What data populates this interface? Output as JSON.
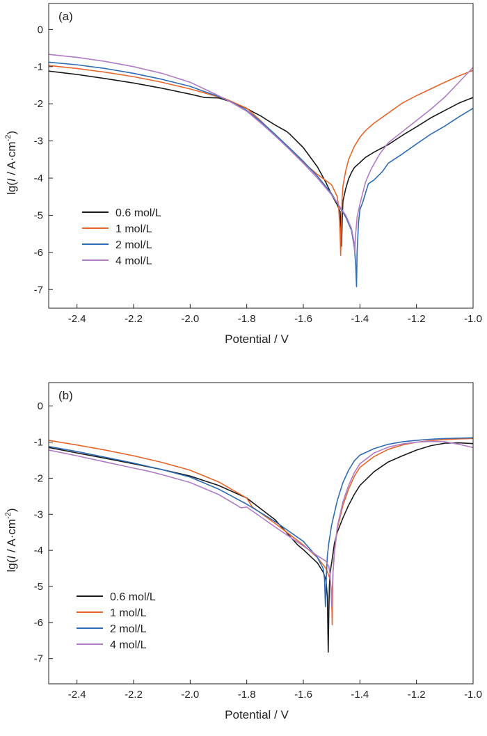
{
  "chart_data": [
    {
      "type": "line",
      "panel": "(a)",
      "title": "",
      "xlabel": "Potential / V",
      "ylabel_prefix": "lg(",
      "ylabel_italic": "I",
      "ylabel_main": " / A·cm",
      "ylabel_sup": "-2",
      "ylabel_suffix": ")",
      "xlim": [
        -2.5,
        -1.0
      ],
      "ylim": [
        -7.5,
        0.7
      ],
      "xticks": [
        -2.4,
        -2.2,
        -2.0,
        -1.8,
        -1.6,
        -1.4,
        -1.2,
        -1.0
      ],
      "xtick_labels": [
        "-2.4",
        "-2.2",
        "-2.0",
        "-1.8",
        "-1.6",
        "-1.4",
        "-1.2",
        "-1.0"
      ],
      "yticks": [
        0,
        -1,
        -2,
        -3,
        -4,
        -5,
        -6,
        -7
      ],
      "ytick_labels": [
        "0",
        "-1",
        "-2",
        "-3",
        "-4",
        "-5",
        "-6",
        "-7"
      ],
      "legend_position": "bottom-left",
      "grid": false,
      "series": [
        {
          "name": "0.6 mol/L",
          "color": "#1a1a1a",
          "x": [
            -2.5,
            -2.4,
            -2.3,
            -2.2,
            -2.1,
            -2.0,
            -1.95,
            -1.9,
            -1.85,
            -1.8,
            -1.75,
            -1.7,
            -1.66,
            -1.65,
            -1.6,
            -1.55,
            -1.52,
            -1.5,
            -1.48,
            -1.47,
            -1.466,
            -1.465,
            -1.462,
            -1.46,
            -1.45,
            -1.44,
            -1.43,
            -1.42,
            -1.4,
            -1.38,
            -1.35,
            -1.3,
            -1.25,
            -1.2,
            -1.15,
            -1.1,
            -1.05,
            -1.0
          ],
          "y": [
            -1.12,
            -1.21,
            -1.32,
            -1.44,
            -1.58,
            -1.74,
            -1.83,
            -1.84,
            -1.96,
            -2.13,
            -2.33,
            -2.57,
            -2.74,
            -2.8,
            -3.18,
            -3.7,
            -4.12,
            -4.45,
            -4.72,
            -4.9,
            -5.5,
            -5.83,
            -5.0,
            -4.62,
            -4.28,
            -4.02,
            -3.85,
            -3.72,
            -3.58,
            -3.44,
            -3.3,
            -3.1,
            -2.85,
            -2.62,
            -2.38,
            -2.18,
            -1.98,
            -1.83
          ]
        },
        {
          "name": "1 mol/L",
          "color": "#e8652a",
          "x": [
            -2.5,
            -2.4,
            -2.3,
            -2.2,
            -2.1,
            -2.0,
            -1.92,
            -1.88,
            -1.85,
            -1.8,
            -1.75,
            -1.7,
            -1.65,
            -1.6,
            -1.55,
            -1.5,
            -1.48,
            -1.475,
            -1.47,
            -1.468,
            -1.466,
            -1.463,
            -1.46,
            -1.455,
            -1.45,
            -1.44,
            -1.42,
            -1.4,
            -1.38,
            -1.35,
            -1.3,
            -1.25,
            -1.2,
            -1.15,
            -1.1,
            -1.05,
            -1.0
          ],
          "y": [
            -0.97,
            -1.05,
            -1.15,
            -1.27,
            -1.42,
            -1.6,
            -1.77,
            -1.85,
            -1.95,
            -2.12,
            -2.46,
            -2.84,
            -3.2,
            -3.58,
            -3.9,
            -4.18,
            -4.5,
            -4.8,
            -5.5,
            -6.08,
            -5.4,
            -4.55,
            -4.22,
            -4.0,
            -3.8,
            -3.5,
            -3.15,
            -2.9,
            -2.72,
            -2.52,
            -2.25,
            -1.98,
            -1.78,
            -1.6,
            -1.42,
            -1.25,
            -1.1
          ]
        },
        {
          "name": "2 mol/L",
          "color": "#2f6cb3",
          "x": [
            -2.5,
            -2.4,
            -2.3,
            -2.2,
            -2.1,
            -2.0,
            -1.95,
            -1.9,
            -1.85,
            -1.8,
            -1.75,
            -1.7,
            -1.65,
            -1.6,
            -1.55,
            -1.5,
            -1.45,
            -1.43,
            -1.42,
            -1.415,
            -1.412,
            -1.41,
            -1.405,
            -1.4,
            -1.39,
            -1.38,
            -1.37,
            -1.35,
            -1.32,
            -1.3,
            -1.25,
            -1.2,
            -1.15,
            -1.1,
            -1.05,
            -1.0
          ],
          "y": [
            -0.88,
            -0.95,
            -1.05,
            -1.18,
            -1.34,
            -1.53,
            -1.67,
            -1.8,
            -1.97,
            -2.18,
            -2.48,
            -2.82,
            -3.18,
            -3.55,
            -3.95,
            -4.42,
            -5.05,
            -5.4,
            -5.85,
            -6.3,
            -6.92,
            -6.0,
            -5.2,
            -4.85,
            -4.65,
            -4.4,
            -4.15,
            -4.05,
            -3.82,
            -3.6,
            -3.35,
            -3.08,
            -2.82,
            -2.6,
            -2.35,
            -2.12
          ]
        },
        {
          "name": "4 mol/L",
          "color": "#b07cc6",
          "x": [
            -2.5,
            -2.4,
            -2.3,
            -2.2,
            -2.1,
            -2.0,
            -1.95,
            -1.9,
            -1.85,
            -1.8,
            -1.75,
            -1.7,
            -1.65,
            -1.6,
            -1.55,
            -1.5,
            -1.45,
            -1.43,
            -1.42,
            -1.418,
            -1.416,
            -1.41,
            -1.4,
            -1.39,
            -1.38,
            -1.36,
            -1.33,
            -1.3,
            -1.25,
            -1.2,
            -1.15,
            -1.1,
            -1.05,
            -1.0
          ],
          "y": [
            -0.67,
            -0.75,
            -0.86,
            -1.0,
            -1.18,
            -1.42,
            -1.6,
            -1.78,
            -1.98,
            -2.2,
            -2.52,
            -2.86,
            -3.22,
            -3.6,
            -4.0,
            -4.45,
            -5.0,
            -5.35,
            -5.75,
            -6.02,
            -5.6,
            -5.05,
            -4.7,
            -4.4,
            -4.1,
            -3.75,
            -3.35,
            -3.05,
            -2.75,
            -2.45,
            -2.15,
            -1.82,
            -1.42,
            -1.02
          ]
        }
      ]
    },
    {
      "type": "line",
      "panel": "(b)",
      "title": "",
      "xlabel": "Potential / V",
      "ylabel_prefix": "lg(",
      "ylabel_italic": "I",
      "ylabel_main": " / A·cm",
      "ylabel_sup": "-2",
      "ylabel_suffix": ")",
      "xlim": [
        -2.5,
        -1.0
      ],
      "ylim": [
        -7.7,
        0.65
      ],
      "xticks": [
        -2.4,
        -2.2,
        -2.0,
        -1.8,
        -1.6,
        -1.4,
        -1.2,
        -1.0
      ],
      "xtick_labels": [
        "-2.4",
        "-2.2",
        "-2.0",
        "-1.8",
        "-1.6",
        "-1.4",
        "-1.2",
        "-1.0"
      ],
      "yticks": [
        0,
        -1,
        -2,
        -3,
        -4,
        -5,
        -6,
        -7
      ],
      "ytick_labels": [
        "0",
        "-1",
        "-2",
        "-3",
        "-4",
        "-5",
        "-6",
        "-7"
      ],
      "legend_position": "bottom-left",
      "grid": false,
      "series": [
        {
          "name": "0.6 mol/L",
          "color": "#1a1a1a",
          "x": [
            -2.5,
            -2.4,
            -2.3,
            -2.2,
            -2.1,
            -2.0,
            -1.9,
            -1.8,
            -1.7,
            -1.62,
            -1.6,
            -1.55,
            -1.53,
            -1.52,
            -1.515,
            -1.512,
            -1.51,
            -1.508,
            -1.505,
            -1.5,
            -1.49,
            -1.48,
            -1.46,
            -1.44,
            -1.42,
            -1.4,
            -1.35,
            -1.3,
            -1.25,
            -1.2,
            -1.15,
            -1.1,
            -1.05,
            -1.0
          ],
          "y": [
            -1.15,
            -1.3,
            -1.45,
            -1.6,
            -1.76,
            -1.94,
            -2.2,
            -2.55,
            -3.15,
            -3.85,
            -3.98,
            -4.35,
            -4.6,
            -4.82,
            -5.3,
            -6.82,
            -5.8,
            -5.0,
            -4.6,
            -4.35,
            -3.8,
            -3.5,
            -3.1,
            -2.75,
            -2.45,
            -2.2,
            -1.82,
            -1.55,
            -1.38,
            -1.22,
            -1.1,
            -1.03,
            -1.02,
            -1.04
          ]
        },
        {
          "name": "1 mol/L",
          "color": "#e8652a",
          "x": [
            -2.5,
            -2.4,
            -2.3,
            -2.2,
            -2.1,
            -2.0,
            -1.9,
            -1.8,
            -1.78,
            -1.7,
            -1.6,
            -1.55,
            -1.52,
            -1.505,
            -1.5,
            -1.498,
            -1.497,
            -1.495,
            -1.49,
            -1.48,
            -1.46,
            -1.44,
            -1.42,
            -1.4,
            -1.35,
            -1.3,
            -1.25,
            -1.2,
            -1.15,
            -1.1,
            -1.05,
            -1.0
          ],
          "y": [
            -0.95,
            -1.08,
            -1.22,
            -1.38,
            -1.56,
            -1.78,
            -2.1,
            -2.55,
            -2.8,
            -3.25,
            -3.85,
            -4.2,
            -4.5,
            -4.8,
            -5.2,
            -6.06,
            -5.3,
            -4.6,
            -4.05,
            -3.4,
            -2.75,
            -2.3,
            -1.95,
            -1.7,
            -1.4,
            -1.2,
            -1.08,
            -1.0,
            -0.96,
            -0.93,
            -0.91,
            -0.9
          ]
        },
        {
          "name": "2 mol/L",
          "color": "#2f6cb3",
          "x": [
            -2.5,
            -2.4,
            -2.3,
            -2.2,
            -2.1,
            -2.0,
            -1.9,
            -1.8,
            -1.7,
            -1.6,
            -1.55,
            -1.53,
            -1.525,
            -1.522,
            -1.52,
            -1.518,
            -1.515,
            -1.51,
            -1.5,
            -1.48,
            -1.46,
            -1.44,
            -1.42,
            -1.4,
            -1.35,
            -1.3,
            -1.25,
            -1.2,
            -1.15,
            -1.1,
            -1.05,
            -1.0
          ],
          "y": [
            -1.12,
            -1.26,
            -1.42,
            -1.58,
            -1.76,
            -1.97,
            -2.3,
            -2.72,
            -3.2,
            -3.75,
            -4.2,
            -4.5,
            -4.8,
            -5.56,
            -5.1,
            -4.6,
            -4.15,
            -3.8,
            -3.3,
            -2.62,
            -2.12,
            -1.78,
            -1.52,
            -1.36,
            -1.18,
            -1.06,
            -0.99,
            -0.95,
            -0.92,
            -0.9,
            -0.89,
            -0.88
          ]
        },
        {
          "name": "4 mol/L",
          "color": "#b07cc6",
          "x": [
            -2.5,
            -2.4,
            -2.3,
            -2.2,
            -2.15,
            -2.1,
            -2.0,
            -1.9,
            -1.82,
            -1.8,
            -1.7,
            -1.6,
            -1.55,
            -1.52,
            -1.51,
            -1.505,
            -1.502,
            -1.5,
            -1.498,
            -1.495,
            -1.49,
            -1.48,
            -1.46,
            -1.44,
            -1.42,
            -1.4,
            -1.35,
            -1.3,
            -1.25,
            -1.2,
            -1.15,
            -1.1,
            -1.05,
            -1.0
          ],
          "y": [
            -1.22,
            -1.38,
            -1.55,
            -1.72,
            -1.8,
            -1.9,
            -2.12,
            -2.45,
            -2.82,
            -2.8,
            -3.35,
            -3.88,
            -4.15,
            -4.3,
            -4.45,
            -4.7,
            -5.2,
            -5.55,
            -5.15,
            -4.6,
            -4.0,
            -3.35,
            -2.65,
            -2.2,
            -1.85,
            -1.6,
            -1.3,
            -1.14,
            -1.05,
            -1.0,
            -0.98,
            -0.99,
            -1.06,
            -1.15
          ]
        }
      ]
    }
  ]
}
